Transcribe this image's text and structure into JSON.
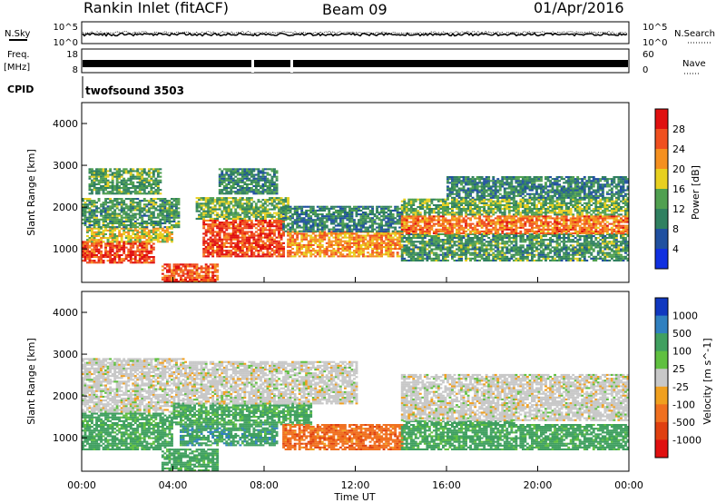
{
  "header": {
    "title": "Rankin Inlet (fitACF)",
    "beam": "Beam 09",
    "date": "01/Apr/2016"
  },
  "panels": {
    "nsky_label": "N.Sky",
    "nsearch_label": "N.Search",
    "freq_label": "Freq.",
    "freq_unit": "[MHz]",
    "nave_label": "Nave",
    "cpid_label": "CPID",
    "cpid_value": "twofsound 3503",
    "noise_ticks_left": [
      "10^5",
      "10^0"
    ],
    "noise_ticks_right": [
      "10^5",
      "10^0"
    ],
    "freq_ticks": [
      "18",
      "8"
    ],
    "nave_ticks": [
      "60",
      "0"
    ]
  },
  "chart_data": [
    {
      "type": "heatmap",
      "title": "",
      "xlabel": "Time UT",
      "ylabel": "Slant Range [km]",
      "xticks": [
        "00:00",
        "04:00",
        "08:00",
        "12:00",
        "16:00",
        "20:00",
        "00:00"
      ],
      "xlim_hours": [
        0,
        24
      ],
      "yticks": [
        "1000",
        "2000",
        "3000",
        "4000"
      ],
      "ylim": [
        200,
        4500
      ],
      "colorbar": {
        "label": "Power [dB]",
        "ticks": [
          "28",
          "24",
          "20",
          "16",
          "12",
          "8",
          "4"
        ],
        "colors": [
          "#e01010",
          "#f05020",
          "#f59020",
          "#e8d020",
          "#50a050",
          "#308060",
          "#2050a0",
          "#1030e0"
        ]
      },
      "regions": [
        {
          "t": [
            0.0,
            3.2
          ],
          "r": [
            650,
            1150
          ],
          "dB": 27
        },
        {
          "t": [
            0.2,
            4.0
          ],
          "r": [
            1150,
            1500
          ],
          "dB": 18
        },
        {
          "t": [
            0.0,
            4.3
          ],
          "r": [
            1500,
            2200
          ],
          "dB": 12
        },
        {
          "t": [
            0.3,
            3.5
          ],
          "r": [
            2300,
            2900
          ],
          "dB": 13
        },
        {
          "t": [
            3.5,
            5.9
          ],
          "r": [
            200,
            650
          ],
          "dB": 26
        },
        {
          "t": [
            5.3,
            8.8
          ],
          "r": [
            800,
            1700
          ],
          "dB": 27
        },
        {
          "t": [
            5.0,
            9.0
          ],
          "r": [
            1700,
            2200
          ],
          "dB": 14
        },
        {
          "t": [
            6.0,
            8.5
          ],
          "r": [
            2300,
            2900
          ],
          "dB": 11
        },
        {
          "t": [
            9.0,
            14.0
          ],
          "r": [
            800,
            1400
          ],
          "dB": 22
        },
        {
          "t": [
            8.8,
            14.0
          ],
          "r": [
            1400,
            2000
          ],
          "dB": 10
        },
        {
          "t": [
            14.0,
            24.0
          ],
          "r": [
            700,
            1350
          ],
          "dB": 12
        },
        {
          "t": [
            14.0,
            24.0
          ],
          "r": [
            1350,
            1800
          ],
          "dB": 24
        },
        {
          "t": [
            14.0,
            24.0
          ],
          "r": [
            1800,
            2200
          ],
          "dB": 14
        },
        {
          "t": [
            16.0,
            24.0
          ],
          "r": [
            2200,
            2700
          ],
          "dB": 10
        }
      ]
    },
    {
      "type": "heatmap",
      "title": "",
      "xlabel": "Time UT",
      "ylabel": "Slant Range [km]",
      "xticks": [
        "00:00",
        "04:00",
        "08:00",
        "12:00",
        "16:00",
        "20:00",
        "00:00"
      ],
      "xlim_hours": [
        0,
        24
      ],
      "yticks": [
        "1000",
        "2000",
        "3000",
        "4000"
      ],
      "ylim": [
        200,
        4500
      ],
      "colorbar": {
        "label": "Velocity [m s^-1]",
        "ticks": [
          "1000",
          "500",
          "100",
          "25",
          "-25",
          "-100",
          "-500",
          "-1000"
        ],
        "colors": [
          "#1038c0",
          "#3080c0",
          "#40a060",
          "#60c040",
          "#c8c8c8",
          "#f0a020",
          "#f07020",
          "#e04010",
          "#e01010"
        ]
      },
      "regions": [
        {
          "t": [
            0.0,
            4.0
          ],
          "r": [
            700,
            1600
          ],
          "v": 120
        },
        {
          "t": [
            0.0,
            4.5
          ],
          "r": [
            1600,
            2900
          ],
          "v": 0
        },
        {
          "t": [
            3.5,
            5.9
          ],
          "r": [
            200,
            700
          ],
          "v": 150
        },
        {
          "t": [
            4.3,
            8.5
          ],
          "r": [
            800,
            1300
          ],
          "v": 200
        },
        {
          "t": [
            4.0,
            10.0
          ],
          "r": [
            1300,
            1800
          ],
          "v": 100
        },
        {
          "t": [
            4.5,
            12.0
          ],
          "r": [
            1800,
            2800
          ],
          "v": 0
        },
        {
          "t": [
            8.8,
            14.0
          ],
          "r": [
            700,
            1300
          ],
          "v": -200
        },
        {
          "t": [
            14.0,
            19.0
          ],
          "r": [
            700,
            1400
          ],
          "v": 120
        },
        {
          "t": [
            19.0,
            24.0
          ],
          "r": [
            700,
            1300
          ],
          "v": 150
        },
        {
          "t": [
            14.0,
            24.0
          ],
          "r": [
            1400,
            2500
          ],
          "v": 0
        }
      ]
    }
  ]
}
